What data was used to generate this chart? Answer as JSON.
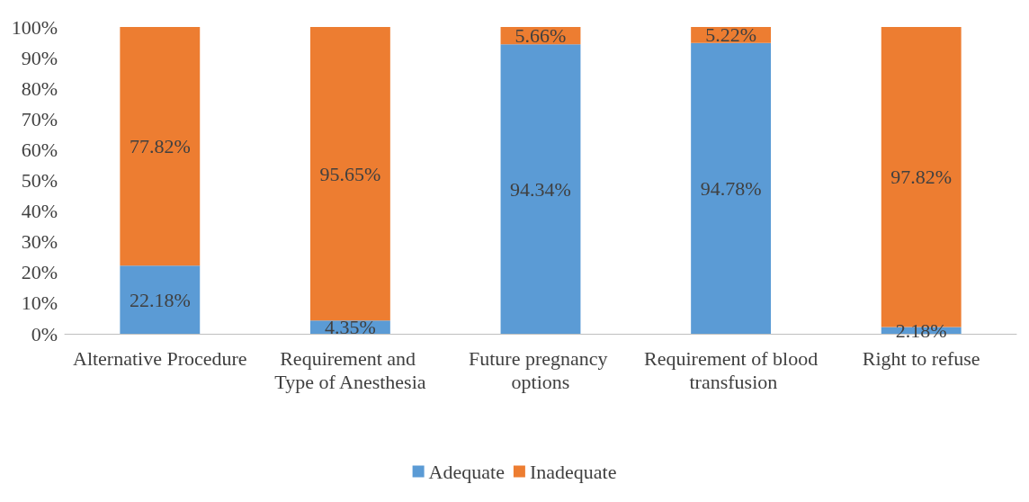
{
  "chart_data": {
    "type": "bar",
    "stacked": true,
    "categories": [
      "Alternative Procedure",
      "Requirement and Type of Anesthesia",
      "Future pregnancy options",
      "Requirement of blood transfusion",
      "Right to refuse"
    ],
    "series": [
      {
        "name": "Adequate",
        "color": "#5b9bd5",
        "values": [
          22.18,
          4.35,
          94.34,
          94.78,
          2.18
        ],
        "value_labels": [
          "22.18%",
          "4.35%",
          "94.34%",
          "94.78%",
          "2.18%"
        ]
      },
      {
        "name": "Inadequate",
        "color": "#ed7d31",
        "values": [
          77.82,
          95.65,
          5.66,
          5.22,
          97.82
        ],
        "value_labels": [
          "77.82%",
          "95.65%",
          "5.66%",
          "5.22%",
          "97.82%"
        ]
      }
    ],
    "ylim": [
      0,
      100
    ],
    "yticks": [
      {
        "value": 0,
        "label": "0%"
      },
      {
        "value": 10,
        "label": "10%"
      },
      {
        "value": 20,
        "label": "20%"
      },
      {
        "value": 30,
        "label": "30%"
      },
      {
        "value": 40,
        "label": "40%"
      },
      {
        "value": 50,
        "label": "50%"
      },
      {
        "value": 60,
        "label": "60%"
      },
      {
        "value": 70,
        "label": "70%"
      },
      {
        "value": 80,
        "label": "80%"
      },
      {
        "value": 90,
        "label": "90%"
      },
      {
        "value": 100,
        "label": "100%"
      }
    ],
    "grid": false,
    "legend": "bottom"
  }
}
